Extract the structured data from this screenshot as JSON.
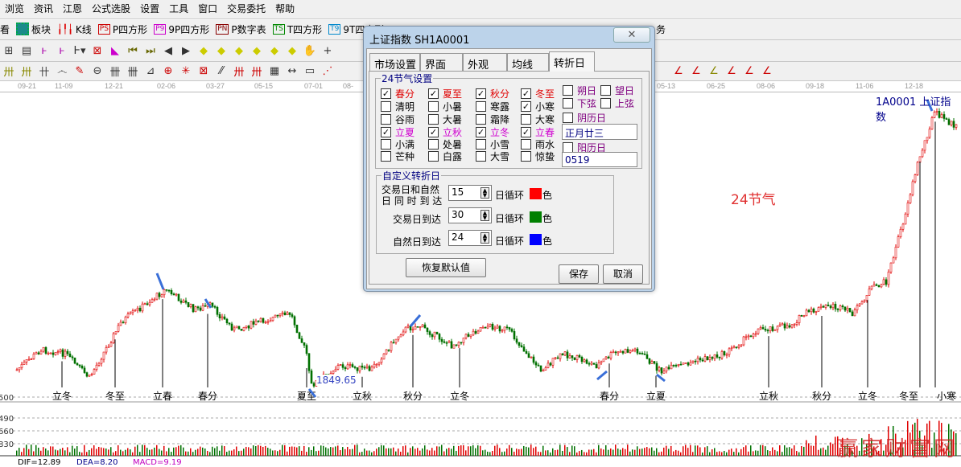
{
  "menu": [
    "浏览",
    "资讯",
    "江恩",
    "公式选股",
    "设置",
    "工具",
    "窗口",
    "交易委托",
    "帮助"
  ],
  "toolbar1": [
    {
      "label": "看",
      "icon": "partial"
    },
    {
      "label": "板块",
      "icon": "grid-icon"
    },
    {
      "label": "K线",
      "icon": "candlestick-icon"
    },
    {
      "label": "P四方形",
      "icon": "PS",
      "color": "#c00000"
    },
    {
      "label": "9P四方形",
      "icon": "P9",
      "color": "#c000c0"
    },
    {
      "label": "P数字表",
      "icon": "PN",
      "color": "#800000"
    },
    {
      "label": "T四方形",
      "icon": "TS",
      "color": "#008000"
    },
    {
      "label": "9T四方形",
      "icon": "T9",
      "color": "#0080c0"
    },
    {
      "label": "务",
      "icon": ""
    }
  ],
  "date_axis": [
    "09-21",
    "11-09",
    "12-21",
    "02-06",
    "03-27",
    "05-15",
    "07-01",
    "08-",
    "05-13",
    "06-25",
    "08-06",
    "09-18",
    "11-06",
    "12-18"
  ],
  "chart": {
    "title": "1A0001  上证指数",
    "annotation": "24节气",
    "low_label": "1849.65",
    "solar_terms": [
      "立冬",
      "冬至",
      "立春",
      "春分",
      "夏至",
      "立秋",
      "秋分",
      "立冬",
      "春分",
      "立夏",
      "立秋",
      "秋分",
      "立冬",
      "冬至",
      "小寒"
    ],
    "price_labels": [
      "500",
      "490",
      "660",
      "830"
    ],
    "watermark": "赢家财富网",
    "macd": {
      "dif": "DIF=12.89",
      "dea": "DEA=8.20",
      "macd": "MACD=9.19"
    },
    "colors": {
      "up": "#e00000",
      "down": "#007000",
      "arrow": "#3a6fd8"
    }
  },
  "dialog": {
    "title": "上证指数  SH1A0001",
    "close": "✕",
    "tabs": [
      {
        "label": "市场设置"
      },
      {
        "label": "界面"
      },
      {
        "label": "外观"
      },
      {
        "label": "均线"
      },
      {
        "label": "转折日",
        "selected": true
      }
    ],
    "solar_group": {
      "title": "24节气设置",
      "columns": [
        [
          {
            "label": "春分",
            "checked": true,
            "color": "red"
          },
          {
            "label": "清明",
            "checked": false
          },
          {
            "label": "谷雨",
            "checked": false
          },
          {
            "label": "立夏",
            "checked": true,
            "color": "mag"
          },
          {
            "label": "小满",
            "checked": false
          },
          {
            "label": "芒种",
            "checked": false
          }
        ],
        [
          {
            "label": "夏至",
            "checked": true,
            "color": "red"
          },
          {
            "label": "小暑",
            "checked": false
          },
          {
            "label": "大暑",
            "checked": false
          },
          {
            "label": "立秋",
            "checked": true,
            "color": "mag"
          },
          {
            "label": "处暑",
            "checked": false
          },
          {
            "label": "白露",
            "checked": false
          }
        ],
        [
          {
            "label": "秋分",
            "checked": true,
            "color": "red"
          },
          {
            "label": "寒露",
            "checked": false
          },
          {
            "label": "霜降",
            "checked": false
          },
          {
            "label": "立冬",
            "checked": true,
            "color": "mag"
          },
          {
            "label": "小雪",
            "checked": false
          },
          {
            "label": "大雪",
            "checked": false
          }
        ],
        [
          {
            "label": "冬至",
            "checked": true,
            "color": "red"
          },
          {
            "label": "小寒",
            "checked": true
          },
          {
            "label": "大寒",
            "checked": false
          },
          {
            "label": "立春",
            "checked": true,
            "color": "mag"
          },
          {
            "label": "雨水",
            "checked": false
          },
          {
            "label": "惊蛰",
            "checked": false
          }
        ]
      ],
      "moon": [
        {
          "label": "朔日",
          "checked": false
        },
        {
          "label": "望日",
          "checked": false
        },
        {
          "label": "下弦",
          "checked": false
        },
        {
          "label": "上弦",
          "checked": false
        }
      ],
      "lunar_label": "阴历日",
      "lunar_checked": false,
      "lunar_value": "正月廿三",
      "solar_label": "阳历日",
      "solar_checked": false,
      "solar_value": "0519"
    },
    "custom_group": {
      "title": "自定义转折日",
      "rows": [
        {
          "label1": "交易日和自然",
          "label2": "日 同 时 到 达",
          "value": "15",
          "unit": "日循环",
          "color": "#ff0000",
          "suffix": "色"
        },
        {
          "label1": "交易日到达",
          "value": "30",
          "unit": "日循环",
          "color": "#008000",
          "suffix": "色"
        },
        {
          "label1": "自然日到达",
          "value": "24",
          "unit": "日循环",
          "color": "#0000ff",
          "suffix": "色"
        }
      ]
    },
    "buttons": {
      "restore": "恢复默认值",
      "save": "保存",
      "cancel": "取消"
    }
  }
}
